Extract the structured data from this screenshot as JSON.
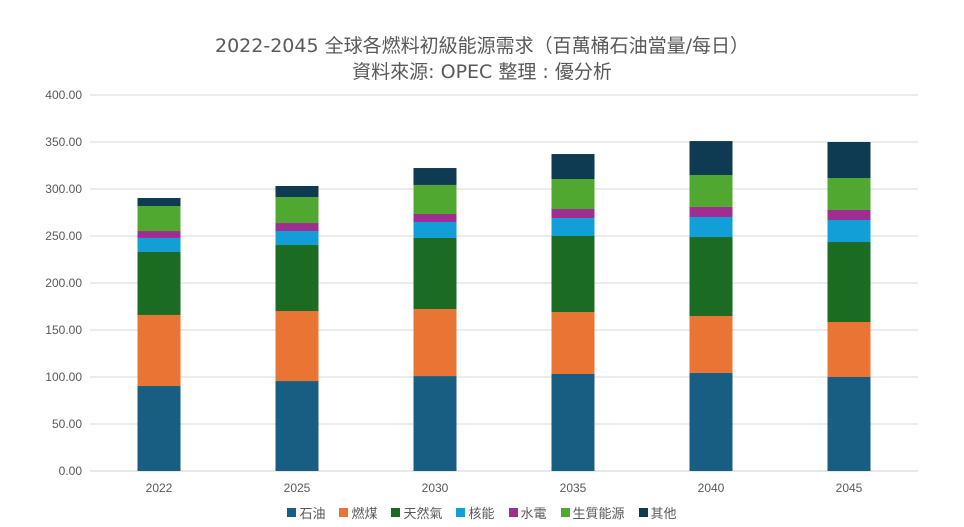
{
  "chart_data": {
    "type": "bar",
    "stacked": true,
    "title": "2022-2045 全球各燃料初級能源需求（百萬桶石油當量/每日）",
    "subtitle": "資料來源: OPEC  整理 : 優分析",
    "xlabel": "",
    "ylabel": "",
    "ylim": [
      0,
      400
    ],
    "yticks": [
      "0.00",
      "50.00",
      "100.00",
      "150.00",
      "200.00",
      "250.00",
      "300.00",
      "350.00",
      "400.00"
    ],
    "grid": true,
    "legend_position": "bottom",
    "categories": [
      "2022",
      "2025",
      "2030",
      "2035",
      "2040",
      "2045"
    ],
    "series": [
      {
        "name": "石油",
        "color": "#175E82",
        "values": [
          90.4,
          95.7,
          101.0,
          103.2,
          104.3,
          100.0
        ]
      },
      {
        "name": "燃煤",
        "color": "#EA7433",
        "values": [
          75.6,
          74.5,
          71.3,
          65.9,
          60.6,
          58.5
        ]
      },
      {
        "name": "天然氣",
        "color": "#1B6B23",
        "values": [
          67.0,
          70.2,
          75.6,
          80.9,
          84.0,
          85.1
        ]
      },
      {
        "name": "核能",
        "color": "#129FD7",
        "values": [
          14.9,
          14.9,
          17.0,
          19.1,
          21.3,
          23.4
        ]
      },
      {
        "name": "水電",
        "color": "#A02D92",
        "values": [
          7.4,
          8.5,
          8.5,
          9.6,
          10.7,
          10.7
        ]
      },
      {
        "name": "生質能源",
        "color": "#50A830",
        "values": [
          26.6,
          27.7,
          30.9,
          31.9,
          34.0,
          34.0
        ]
      },
      {
        "name": "其他",
        "color": "#0E3A52",
        "values": [
          8.5,
          11.7,
          18.0,
          26.6,
          36.1,
          38.3
        ]
      }
    ]
  }
}
